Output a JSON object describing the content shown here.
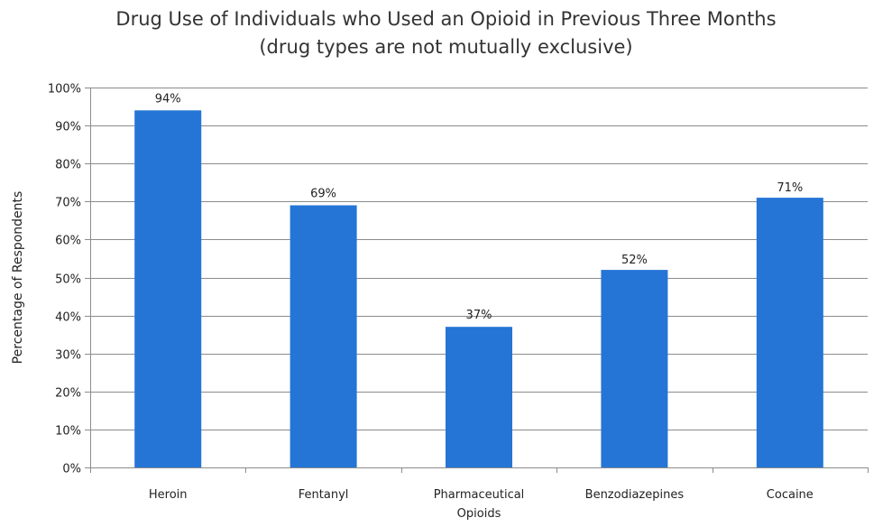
{
  "chart_data": {
    "type": "bar",
    "title_lines": [
      "Drug Use of Individuals who Used an Opioid in Previous Three Months",
      "(drug types are not mutually exclusive)"
    ],
    "xlabel": "",
    "ylabel": "Percentage of Respondents",
    "ylim": [
      0,
      100
    ],
    "y_ticks": [
      0,
      10,
      20,
      30,
      40,
      50,
      60,
      70,
      80,
      90,
      100
    ],
    "y_tick_suffix": "%",
    "grid": true,
    "legend": "none",
    "categories": [
      [
        "Heroin"
      ],
      [
        "Fentanyl"
      ],
      [
        "Pharmaceutical",
        "Opioids"
      ],
      [
        "Benzodiazepines"
      ],
      [
        "Cocaine"
      ]
    ],
    "values": [
      94,
      69,
      37,
      52,
      71
    ],
    "value_labels": [
      "94%",
      "69%",
      "37%",
      "52%",
      "71%"
    ],
    "value_positions": [
      94,
      69,
      37,
      51.5,
      70.5
    ],
    "colors": {
      "bar": "#2475D6",
      "grid": "#8C8C8C",
      "axis": "#8C8C8C",
      "text": "#222222"
    }
  }
}
